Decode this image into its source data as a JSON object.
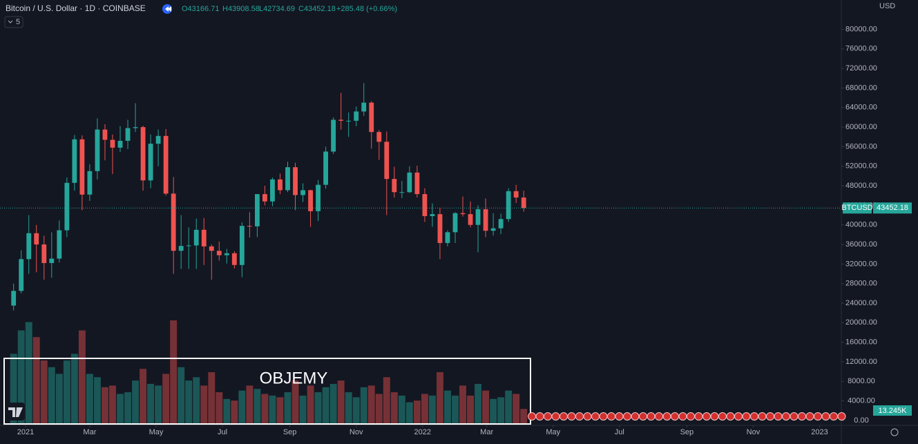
{
  "chart_data": {
    "type": "candlestick",
    "header": {
      "symbol": "Bitcoin / U.S. Dollar · 1D · COINBASE",
      "open": "O43166.71",
      "high": "H43908.58",
      "low": "L42734.69",
      "close": "C43452.18",
      "change": "+285.48 (+0.66%)",
      "indicator_count": "5"
    },
    "currency": "USD",
    "symbol_tag": "BTCUSD",
    "volume_tag": "13.245K",
    "annotation": "OBJEMY",
    "up_color": "#26a69a",
    "down_color": "#ef5350",
    "ylim": [
      -1000,
      86000
    ],
    "yticks": [
      {
        "value": 0,
        "label": "0.00"
      },
      {
        "value": 4000,
        "label": "4000.00"
      },
      {
        "value": 8000,
        "label": "8000.00"
      },
      {
        "value": 12000,
        "label": "12000.00"
      },
      {
        "value": 16000,
        "label": "16000.00"
      },
      {
        "value": 20000,
        "label": "20000.00"
      },
      {
        "value": 24000,
        "label": "24000.00"
      },
      {
        "value": 28000,
        "label": "28000.00"
      },
      {
        "value": 32000,
        "label": "32000.00"
      },
      {
        "value": 36000,
        "label": "36000.00"
      },
      {
        "value": 40000,
        "label": "40000.00"
      },
      {
        "value": 44000,
        "label": "44000.00"
      },
      {
        "value": 48000,
        "label": "48000.00"
      },
      {
        "value": 52000,
        "label": "52000.00"
      },
      {
        "value": 56000,
        "label": "56000.00"
      },
      {
        "value": 60000,
        "label": "60000.00"
      },
      {
        "value": 64000,
        "label": "64000.00"
      },
      {
        "value": 68000,
        "label": "68000.00"
      },
      {
        "value": 72000,
        "label": "72000.00"
      },
      {
        "value": 76000,
        "label": "76000.00"
      },
      {
        "value": 80000,
        "label": "80000.00"
      }
    ],
    "xlim": [
      -23.5,
      750
    ],
    "xticks": [
      {
        "value": 0,
        "label": "2021"
      },
      {
        "value": 59,
        "label": "Mar"
      },
      {
        "value": 120,
        "label": "May"
      },
      {
        "value": 181,
        "label": "Jul"
      },
      {
        "value": 243,
        "label": "Sep"
      },
      {
        "value": 304,
        "label": "Nov"
      },
      {
        "value": 365,
        "label": "2022"
      },
      {
        "value": 424,
        "label": "Mar"
      },
      {
        "value": 485,
        "label": "May"
      },
      {
        "value": 546,
        "label": "Jul"
      },
      {
        "value": 608,
        "label": "Sep"
      },
      {
        "value": 669,
        "label": "Nov"
      },
      {
        "value": 730,
        "label": "2023"
      }
    ],
    "x": [
      -11,
      -4,
      3,
      10,
      17,
      24,
      31,
      38,
      45,
      52,
      59,
      66,
      73,
      80,
      87,
      94,
      101,
      108,
      115,
      122,
      129,
      136,
      143,
      150,
      157,
      164,
      171,
      178,
      185,
      192,
      199,
      206,
      213,
      220,
      227,
      234,
      241,
      248,
      255,
      262,
      269,
      276,
      283,
      290,
      297,
      304,
      311,
      318,
      325,
      332,
      339,
      346,
      353,
      360,
      367,
      374,
      381,
      388,
      395,
      402,
      409,
      416,
      423,
      430,
      437,
      444,
      451,
      458
    ],
    "open": [
      23500,
      26500,
      33000,
      38300,
      36000,
      32200,
      33100,
      38900,
      48600,
      57500,
      46200,
      51000,
      59500,
      57400,
      55800,
      57200,
      59800,
      60000,
      49100,
      56600,
      58200,
      46400,
      34700,
      35700,
      35800,
      39000,
      35600,
      34700,
      33800,
      34200,
      31800,
      39800,
      39700,
      46300,
      44800,
      49300,
      47100,
      51800,
      46100,
      47100,
      42800,
      48200,
      55000,
      61500,
      61300,
      61300,
      63200,
      65000,
      59000,
      57000,
      49400,
      46700,
      46700,
      50700,
      46300,
      41800,
      42200,
      36300,
      38500,
      42400,
      42200,
      40000,
      43200,
      38800,
      39300,
      41200,
      46900,
      45600
    ],
    "high": [
      28000,
      34800,
      42000,
      40000,
      37800,
      38500,
      40900,
      49700,
      58400,
      58300,
      52400,
      61800,
      60600,
      58500,
      60200,
      61500,
      64900,
      60300,
      58500,
      59500,
      59600,
      49800,
      42000,
      39500,
      41300,
      41400,
      36000,
      36600,
      35100,
      34600,
      40500,
      42600,
      46200,
      48000,
      49700,
      50500,
      52900,
      52700,
      48500,
      47200,
      49200,
      56000,
      62000,
      67000,
      63000,
      64200,
      69000,
      65300,
      59400,
      59100,
      51900,
      49000,
      52000,
      52100,
      47500,
      44400,
      43500,
      38900,
      42600,
      45800,
      44800,
      44000,
      45400,
      42400,
      42300,
      47500,
      48200,
      47000
    ],
    "low": [
      22500,
      26000,
      30000,
      30300,
      28800,
      29200,
      32300,
      37500,
      47000,
      43000,
      44900,
      49300,
      53200,
      50400,
      54900,
      55500,
      59000,
      47000,
      47500,
      52000,
      46000,
      30000,
      31000,
      31000,
      31000,
      31800,
      28800,
      32700,
      32100,
      31100,
      29300,
      37400,
      37500,
      44000,
      43800,
      46300,
      46700,
      43000,
      44700,
      39600,
      40800,
      47400,
      54500,
      59500,
      58000,
      60200,
      62300,
      55600,
      53300,
      42000,
      45600,
      45500,
      46500,
      45600,
      40600,
      39600,
      33000,
      35600,
      36300,
      41700,
      39500,
      34400,
      37500,
      37800,
      38100,
      40600,
      44500,
      42700
    ],
    "close": [
      26500,
      33000,
      38300,
      36000,
      32200,
      33100,
      38900,
      48600,
      57500,
      46200,
      51000,
      59500,
      57400,
      55800,
      57200,
      59800,
      60000,
      49100,
      56600,
      58200,
      46400,
      34700,
      35700,
      35800,
      39000,
      35600,
      34700,
      33800,
      34200,
      31800,
      39800,
      39700,
      46300,
      44800,
      49300,
      47100,
      51800,
      46100,
      47100,
      42800,
      48200,
      55000,
      61500,
      61300,
      61300,
      63200,
      65000,
      59000,
      57000,
      49400,
      46700,
      46700,
      50700,
      46300,
      41800,
      42200,
      36300,
      38500,
      42400,
      42200,
      40000,
      43200,
      38800,
      39300,
      41200,
      46900,
      45600,
      43452.18
    ],
    "volume": [
      420000,
      560000,
      610000,
      520000,
      380000,
      340000,
      300000,
      380000,
      420000,
      560000,
      300000,
      280000,
      220000,
      230000,
      180000,
      190000,
      260000,
      330000,
      240000,
      230000,
      300000,
      620000,
      340000,
      260000,
      280000,
      230000,
      310000,
      190000,
      150000,
      140000,
      200000,
      230000,
      210000,
      180000,
      170000,
      160000,
      190000,
      260000,
      170000,
      230000,
      190000,
      220000,
      240000,
      260000,
      190000,
      160000,
      220000,
      230000,
      180000,
      280000,
      190000,
      170000,
      130000,
      140000,
      180000,
      170000,
      310000,
      200000,
      170000,
      230000,
      170000,
      240000,
      200000,
      150000,
      160000,
      200000,
      180000,
      90000
    ]
  }
}
